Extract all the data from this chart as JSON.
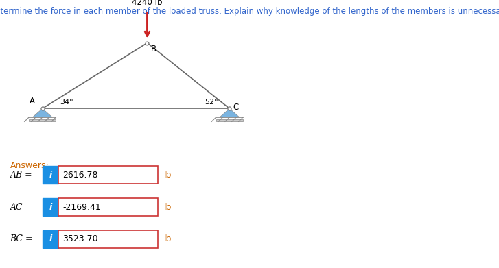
{
  "title": "Determine the force in each member of the loaded truss. Explain why knowledge of the lengths of the members is unnecessary.",
  "title_color": "#3366cc",
  "title_fontsize": 8.5,
  "load_label": "4240 lb",
  "angle_A": "34°",
  "angle_C": "52°",
  "node_A_label": "A",
  "node_B_label": "B",
  "node_C_label": "C",
  "answers_label": "Answers:",
  "answers_label_color": "#cc6600",
  "answers": [
    {
      "name": "AB =",
      "value": "2616.78",
      "unit": "lb"
    },
    {
      "name": "AC =",
      "value": "-2169.41",
      "unit": "lb"
    },
    {
      "name": "BC =",
      "value": "3523.70",
      "unit": "lb"
    }
  ],
  "info_box_color": "#1a8fe3",
  "answer_box_border": "#cc3333",
  "answer_text_color": "#000000",
  "unit_color": "#cc6600",
  "truss_color": "#666666",
  "support_color": "#7ab4e0",
  "arrow_color": "#cc2222",
  "bg_color": "#ffffff",
  "A": [
    0.085,
    0.595
  ],
  "B": [
    0.295,
    0.84
  ],
  "C": [
    0.46,
    0.595
  ]
}
